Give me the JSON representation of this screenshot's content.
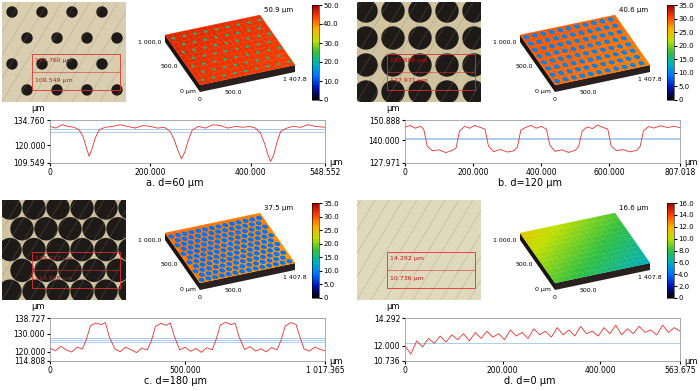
{
  "chart_data": [
    {
      "type": "line",
      "title": "a. d=60 μm",
      "color": "#e8302a",
      "x": [
        0,
        12,
        24,
        36,
        48,
        58,
        66,
        72,
        78,
        84,
        90,
        98,
        110,
        125,
        140,
        155,
        170,
        185,
        200,
        215,
        228,
        240,
        248,
        255,
        262,
        269,
        276,
        284,
        296,
        310,
        325,
        340,
        355,
        370,
        385,
        398,
        410,
        420,
        428,
        434,
        440,
        446,
        452,
        460,
        472,
        485,
        500,
        515,
        530,
        548.552
      ],
      "values": [
        131,
        130,
        132,
        131,
        130.5,
        129,
        125,
        119,
        113.5,
        118,
        124,
        129,
        130.5,
        131,
        132,
        131,
        130,
        131.5,
        131,
        130,
        130.5,
        128,
        123,
        117,
        112,
        116,
        123,
        129,
        131,
        130,
        132,
        131.5,
        130,
        131,
        130.5,
        131,
        130,
        127,
        121,
        115,
        110.5,
        114,
        121,
        128,
        130,
        131,
        130.5,
        132,
        131,
        130.5
      ],
      "xlim": [
        0,
        548.552
      ],
      "ylim": [
        109.549,
        134.76
      ],
      "xticks": [
        0,
        {
          "value": 200,
          "label": "200.000"
        },
        {
          "value": 400,
          "label": "400.000"
        },
        548.552
      ],
      "yticks": [
        109.549,
        {
          "value": 120,
          "label": "120.000"
        },
        {
          "value": 134.76,
          "label": "134.760"
        }
      ],
      "x_label": "μm",
      "y_label": "μm",
      "reference_lines": [
        129.5,
        127.5
      ],
      "image_labels": [
        "134.760 μm",
        "109.549 μm"
      ],
      "surface": {
        "top_label": "50.9 μm",
        "xlim": [
          0,
          1407.8
        ],
        "ylim": [
          0,
          1000
        ],
        "xticks": [
          0,
          {
            "value": 500,
            "label": "500.0"
          },
          {
            "value": 1407.8,
            "label": "1 407.8"
          }
        ],
        "yticks": [
          {
            "value": 0,
            "label": "0 μm"
          },
          {
            "value": 500,
            "label": "500.0"
          },
          {
            "value": 1000,
            "label": "1 000.0"
          }
        ],
        "levels": [
          46,
          44
        ],
        "pit_level": 22
      },
      "colorbar": {
        "range": [
          0,
          50
        ],
        "ticks": [
          0,
          {
            "value": 10,
            "label": "10.0"
          },
          {
            "value": 20,
            "label": "20.0"
          },
          {
            "value": 30,
            "label": "30.0"
          },
          {
            "value": 40,
            "label": "40.0"
          },
          {
            "value": 50,
            "label": "50.0"
          }
        ]
      }
    },
    {
      "type": "line",
      "title": "b. d=120 μm",
      "color": "#e8302a",
      "x": [
        0,
        15,
        30,
        45,
        55,
        65,
        80,
        100,
        120,
        140,
        150,
        160,
        175,
        190,
        205,
        220,
        235,
        245,
        260,
        280,
        300,
        320,
        330,
        340,
        355,
        370,
        385,
        400,
        415,
        425,
        440,
        460,
        480,
        500,
        510,
        520,
        535,
        550,
        565,
        580,
        595,
        605,
        620,
        640,
        660,
        680,
        690,
        700,
        715,
        730,
        750,
        770,
        790,
        807.018
      ],
      "values": [
        147,
        148,
        146.5,
        147.5,
        146,
        137,
        134.5,
        135,
        133.5,
        134.8,
        136,
        145,
        147.5,
        146.5,
        148,
        147,
        146,
        137,
        134,
        135.2,
        133.8,
        134.5,
        136.5,
        145.5,
        147,
        148,
        146.5,
        147.5,
        146,
        137.5,
        134.2,
        135,
        133.6,
        134.8,
        137,
        145,
        147.2,
        146.3,
        148.2,
        147,
        146,
        137,
        134.6,
        135.1,
        133.9,
        134.7,
        136.8,
        145.2,
        147.4,
        146.6,
        147.8,
        146.9,
        147.5,
        146.8
      ],
      "xlim": [
        0,
        807.018
      ],
      "ylim": [
        127.971,
        150.888
      ],
      "xticks": [
        0,
        {
          "value": 200,
          "label": "200.000"
        },
        {
          "value": 400,
          "label": "400.000"
        },
        {
          "value": 600,
          "label": "600.000"
        },
        807.018
      ],
      "yticks": [
        127.971,
        {
          "value": 140,
          "label": "140.000"
        },
        150.888
      ],
      "x_label": "μm",
      "y_label": "μm",
      "reference_lines": [
        141.5,
        140.5
      ],
      "image_labels": [
        "150.888 μm",
        "127.971 μm"
      ],
      "surface": {
        "top_label": "40.6 μm",
        "xlim": [
          0,
          1407.8
        ],
        "ylim": [
          0,
          1000
        ],
        "xticks": [
          0,
          {
            "value": 500,
            "label": "500.0"
          },
          {
            "value": 1407.8,
            "label": "1 407.8"
          }
        ],
        "yticks": [
          {
            "value": 0,
            "label": "0 μm"
          },
          {
            "value": 500,
            "label": "500.0"
          },
          {
            "value": 1000,
            "label": "1 000.0"
          }
        ],
        "levels": [
          30,
          28
        ],
        "pit_level": 10
      },
      "colorbar": {
        "range": [
          0,
          35
        ],
        "ticks": [
          0,
          {
            "value": 5,
            "label": "5.0"
          },
          {
            "value": 10,
            "label": "10.0"
          },
          {
            "value": 15,
            "label": "15.0"
          },
          {
            "value": 20,
            "label": "20.0"
          },
          {
            "value": 25,
            "label": "25.0"
          },
          {
            "value": 30,
            "label": "30.0"
          },
          {
            "value": 35,
            "label": "35.0"
          }
        ]
      }
    },
    {
      "type": "line",
      "title": "c. d=180 μm",
      "color": "#e8302a",
      "x": [
        0,
        20,
        40,
        60,
        80,
        100,
        120,
        135,
        150,
        170,
        190,
        205,
        220,
        240,
        260,
        280,
        300,
        320,
        340,
        360,
        375,
        390,
        410,
        430,
        445,
        460,
        480,
        500,
        520,
        540,
        560,
        580,
        600,
        615,
        630,
        650,
        670,
        685,
        700,
        720,
        740,
        760,
        780,
        800,
        820,
        840,
        855,
        870,
        890,
        910,
        925,
        940,
        960,
        980,
        1000,
        1017.365
      ],
      "values": [
        122,
        120.5,
        123,
        121,
        119.8,
        122.5,
        121.5,
        127,
        134.5,
        136,
        135,
        136.2,
        128,
        121.5,
        120,
        122.5,
        121,
        119.5,
        122,
        121,
        126,
        134,
        135.8,
        134.6,
        136,
        128.5,
        121,
        122.5,
        120.2,
        121.8,
        119.6,
        122.2,
        121,
        127,
        134.8,
        136.3,
        135,
        135.9,
        128,
        121.2,
        122.8,
        120.4,
        121.6,
        119.9,
        122.3,
        121,
        126.5,
        134.2,
        136.1,
        135.2,
        128,
        121.5,
        120.3,
        122.6,
        121.2,
        120.5
      ],
      "xlim": [
        0,
        1017.365
      ],
      "ylim": [
        114.808,
        138.727
      ],
      "xticks": [
        0,
        {
          "value": 500,
          "label": "500.000"
        },
        {
          "value": 1017.365,
          "label": "1 017.365"
        }
      ],
      "yticks": [
        114.808,
        {
          "value": 120,
          "label": "120.000"
        },
        {
          "value": 130,
          "label": "130.000"
        },
        138.727
      ],
      "x_label": "μm",
      "y_label": "μm",
      "reference_lines": [
        127.5,
        126.5,
        125.5
      ],
      "image_labels": [
        "138.727 μm",
        "114.808 μm"
      ],
      "surface": {
        "top_label": "37.5 μm",
        "xlim": [
          0,
          1407.8
        ],
        "ylim": [
          0,
          1000
        ],
        "xticks": [
          0,
          {
            "value": 500,
            "label": "500.0"
          },
          {
            "value": 1407.8,
            "label": "1 407.8"
          }
        ],
        "yticks": [
          {
            "value": 0,
            "label": "0 μm"
          },
          {
            "value": 500,
            "label": "500.0"
          },
          {
            "value": 1000,
            "label": "1 000.0"
          }
        ],
        "levels": [
          29,
          27
        ],
        "pit_level": 9
      },
      "colorbar": {
        "range": [
          0,
          35
        ],
        "ticks": [
          0,
          {
            "value": 5,
            "label": "5.0"
          },
          {
            "value": 10,
            "label": "10.0"
          },
          {
            "value": 15,
            "label": "15.0"
          },
          {
            "value": 20,
            "label": "20.0"
          },
          {
            "value": 25,
            "label": "25.0"
          },
          {
            "value": 30,
            "label": "30.0"
          },
          {
            "value": 35,
            "label": "35.0"
          }
        ]
      }
    },
    {
      "type": "line",
      "title": "d. d=0 μm",
      "color": "#e8302a",
      "x": [
        0,
        12,
        24,
        36,
        48,
        60,
        72,
        84,
        96,
        108,
        120,
        132,
        144,
        156,
        168,
        180,
        192,
        204,
        216,
        228,
        240,
        252,
        264,
        276,
        288,
        300,
        312,
        324,
        336,
        348,
        360,
        372,
        384,
        396,
        408,
        420,
        432,
        444,
        456,
        468,
        480,
        492,
        504,
        516,
        528,
        540,
        552,
        563.675
      ],
      "values": [
        12.0,
        11.3,
        12.4,
        11.9,
        12.6,
        12.2,
        12.8,
        12.3,
        12.9,
        12.5,
        13.0,
        12.4,
        13.1,
        12.6,
        13.2,
        12.7,
        13.0,
        12.5,
        13.3,
        12.8,
        13.1,
        12.6,
        13.4,
        12.9,
        13.2,
        12.7,
        13.5,
        12.9,
        13.3,
        12.8,
        13.6,
        13.0,
        13.2,
        12.8,
        13.5,
        13.0,
        13.7,
        12.9,
        13.4,
        13.0,
        13.6,
        13.1,
        13.3,
        12.9,
        13.7,
        13.1,
        13.5,
        13.2
      ],
      "xlim": [
        0,
        563.675
      ],
      "ylim": [
        10.736,
        14.292
      ],
      "xticks": [
        0,
        {
          "value": 200,
          "label": "200.000"
        },
        {
          "value": 400,
          "label": "400.000"
        },
        563.675
      ],
      "yticks": [
        10.736,
        {
          "value": 12,
          "label": "12.000"
        },
        14.292
      ],
      "x_label": "μm",
      "y_label": "μm",
      "reference_lines": [
        12.2
      ],
      "image_labels": [
        "14.292 μm",
        "10.736 μm"
      ],
      "surface": {
        "top_label": "16.6 μm",
        "xlim": [
          0,
          1407.8
        ],
        "ylim": [
          0,
          1000
        ],
        "xticks": [
          0,
          {
            "value": 500,
            "label": "500.0"
          },
          {
            "value": 1407.8,
            "label": "1 407.8"
          }
        ],
        "yticks": [
          {
            "value": 0,
            "label": "0 μm"
          },
          {
            "value": 500,
            "label": "500.0"
          },
          {
            "value": 1000,
            "label": "1 000.0"
          }
        ],
        "levels": [
          11,
          6
        ]
      },
      "colorbar": {
        "range": [
          0,
          16
        ],
        "ticks": [
          0,
          {
            "value": 2,
            "label": "2.0"
          },
          {
            "value": 4,
            "label": "4.0"
          },
          {
            "value": 6,
            "label": "6.0"
          },
          {
            "value": 8,
            "label": "8.0"
          },
          {
            "value": 10,
            "label": "10.0"
          },
          {
            "value": 12,
            "label": "12.0"
          },
          {
            "value": 14,
            "label": "14.0"
          },
          {
            "value": 16,
            "label": "16.0"
          }
        ]
      }
    }
  ]
}
